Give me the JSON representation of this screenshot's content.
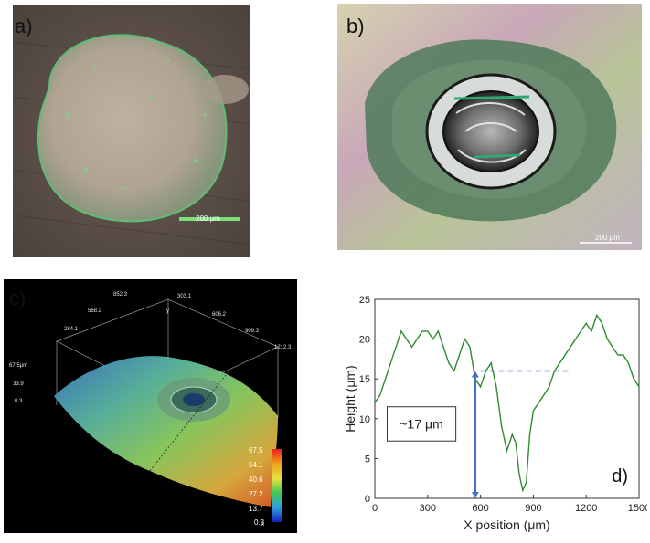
{
  "figure": {
    "panel_a": {
      "label": "a)",
      "scalebar_text": "200 μm"
    },
    "panel_b": {
      "label": "b)",
      "scalebar_text": "200 μm"
    },
    "panel_c": {
      "label": "c)",
      "axis_ticks_top": [
        "852.3",
        "568.2",
        "284.1",
        "303.1",
        "606.2",
        "909.3",
        "1212.3"
      ],
      "axis_ticks_left": [
        "67.5μm",
        "33.9",
        "0.3"
      ],
      "axis_letters": [
        "y",
        "x"
      ],
      "colorbar_labels": [
        "67.5",
        "54.1",
        "40.6",
        "27.2",
        "13.7",
        "0.3"
      ],
      "colorbar_colors": [
        "#e8201a",
        "#f0a020",
        "#e8e040",
        "#40c850",
        "#30a0e0",
        "#1020c0"
      ]
    },
    "panel_d": {
      "label": "d)",
      "annotation": "~17 μm",
      "line_color": "#2e8b2e",
      "arrow_color": "#4a72c4"
    }
  },
  "chart_data": {
    "type": "line",
    "xlabel": "X position (μm)",
    "ylabel": "Height (μm)",
    "xlim": [
      0,
      1500
    ],
    "ylim": [
      0,
      25
    ],
    "xticks": [
      0,
      300,
      600,
      900,
      1200,
      1500
    ],
    "yticks": [
      0,
      5,
      10,
      15,
      20,
      25
    ],
    "grid": false,
    "series": [
      {
        "x": [
          0,
          30,
          60,
          90,
          120,
          150,
          180,
          210,
          240,
          270,
          300,
          330,
          360,
          390,
          420,
          450,
          480,
          510,
          540,
          570,
          600,
          630,
          660,
          690,
          720,
          750,
          780,
          800,
          820,
          840,
          860,
          880,
          900,
          930,
          960,
          990,
          1020,
          1050,
          1080,
          1110,
          1140,
          1170,
          1200,
          1230,
          1260,
          1290,
          1320,
          1350,
          1380,
          1410,
          1440,
          1470,
          1500
        ],
        "y": [
          12,
          13,
          15,
          17,
          19,
          21,
          20,
          19,
          20,
          21,
          21,
          20,
          21,
          19,
          17,
          16,
          18,
          20,
          19,
          15,
          14,
          16,
          17,
          14,
          9,
          6,
          8,
          7,
          3,
          1,
          2,
          8,
          11,
          12,
          13,
          14,
          16,
          17,
          18,
          19,
          20,
          21,
          22,
          21,
          23,
          22,
          20,
          19,
          18,
          18,
          17,
          15,
          14
        ]
      }
    ],
    "annotations": [
      {
        "type": "dashed_line",
        "y": 16,
        "x": [
          600,
          1100
        ]
      },
      {
        "type": "double_arrow",
        "x": 570,
        "y": [
          0,
          16
        ]
      },
      {
        "type": "text",
        "text": "~17 μm"
      }
    ]
  }
}
